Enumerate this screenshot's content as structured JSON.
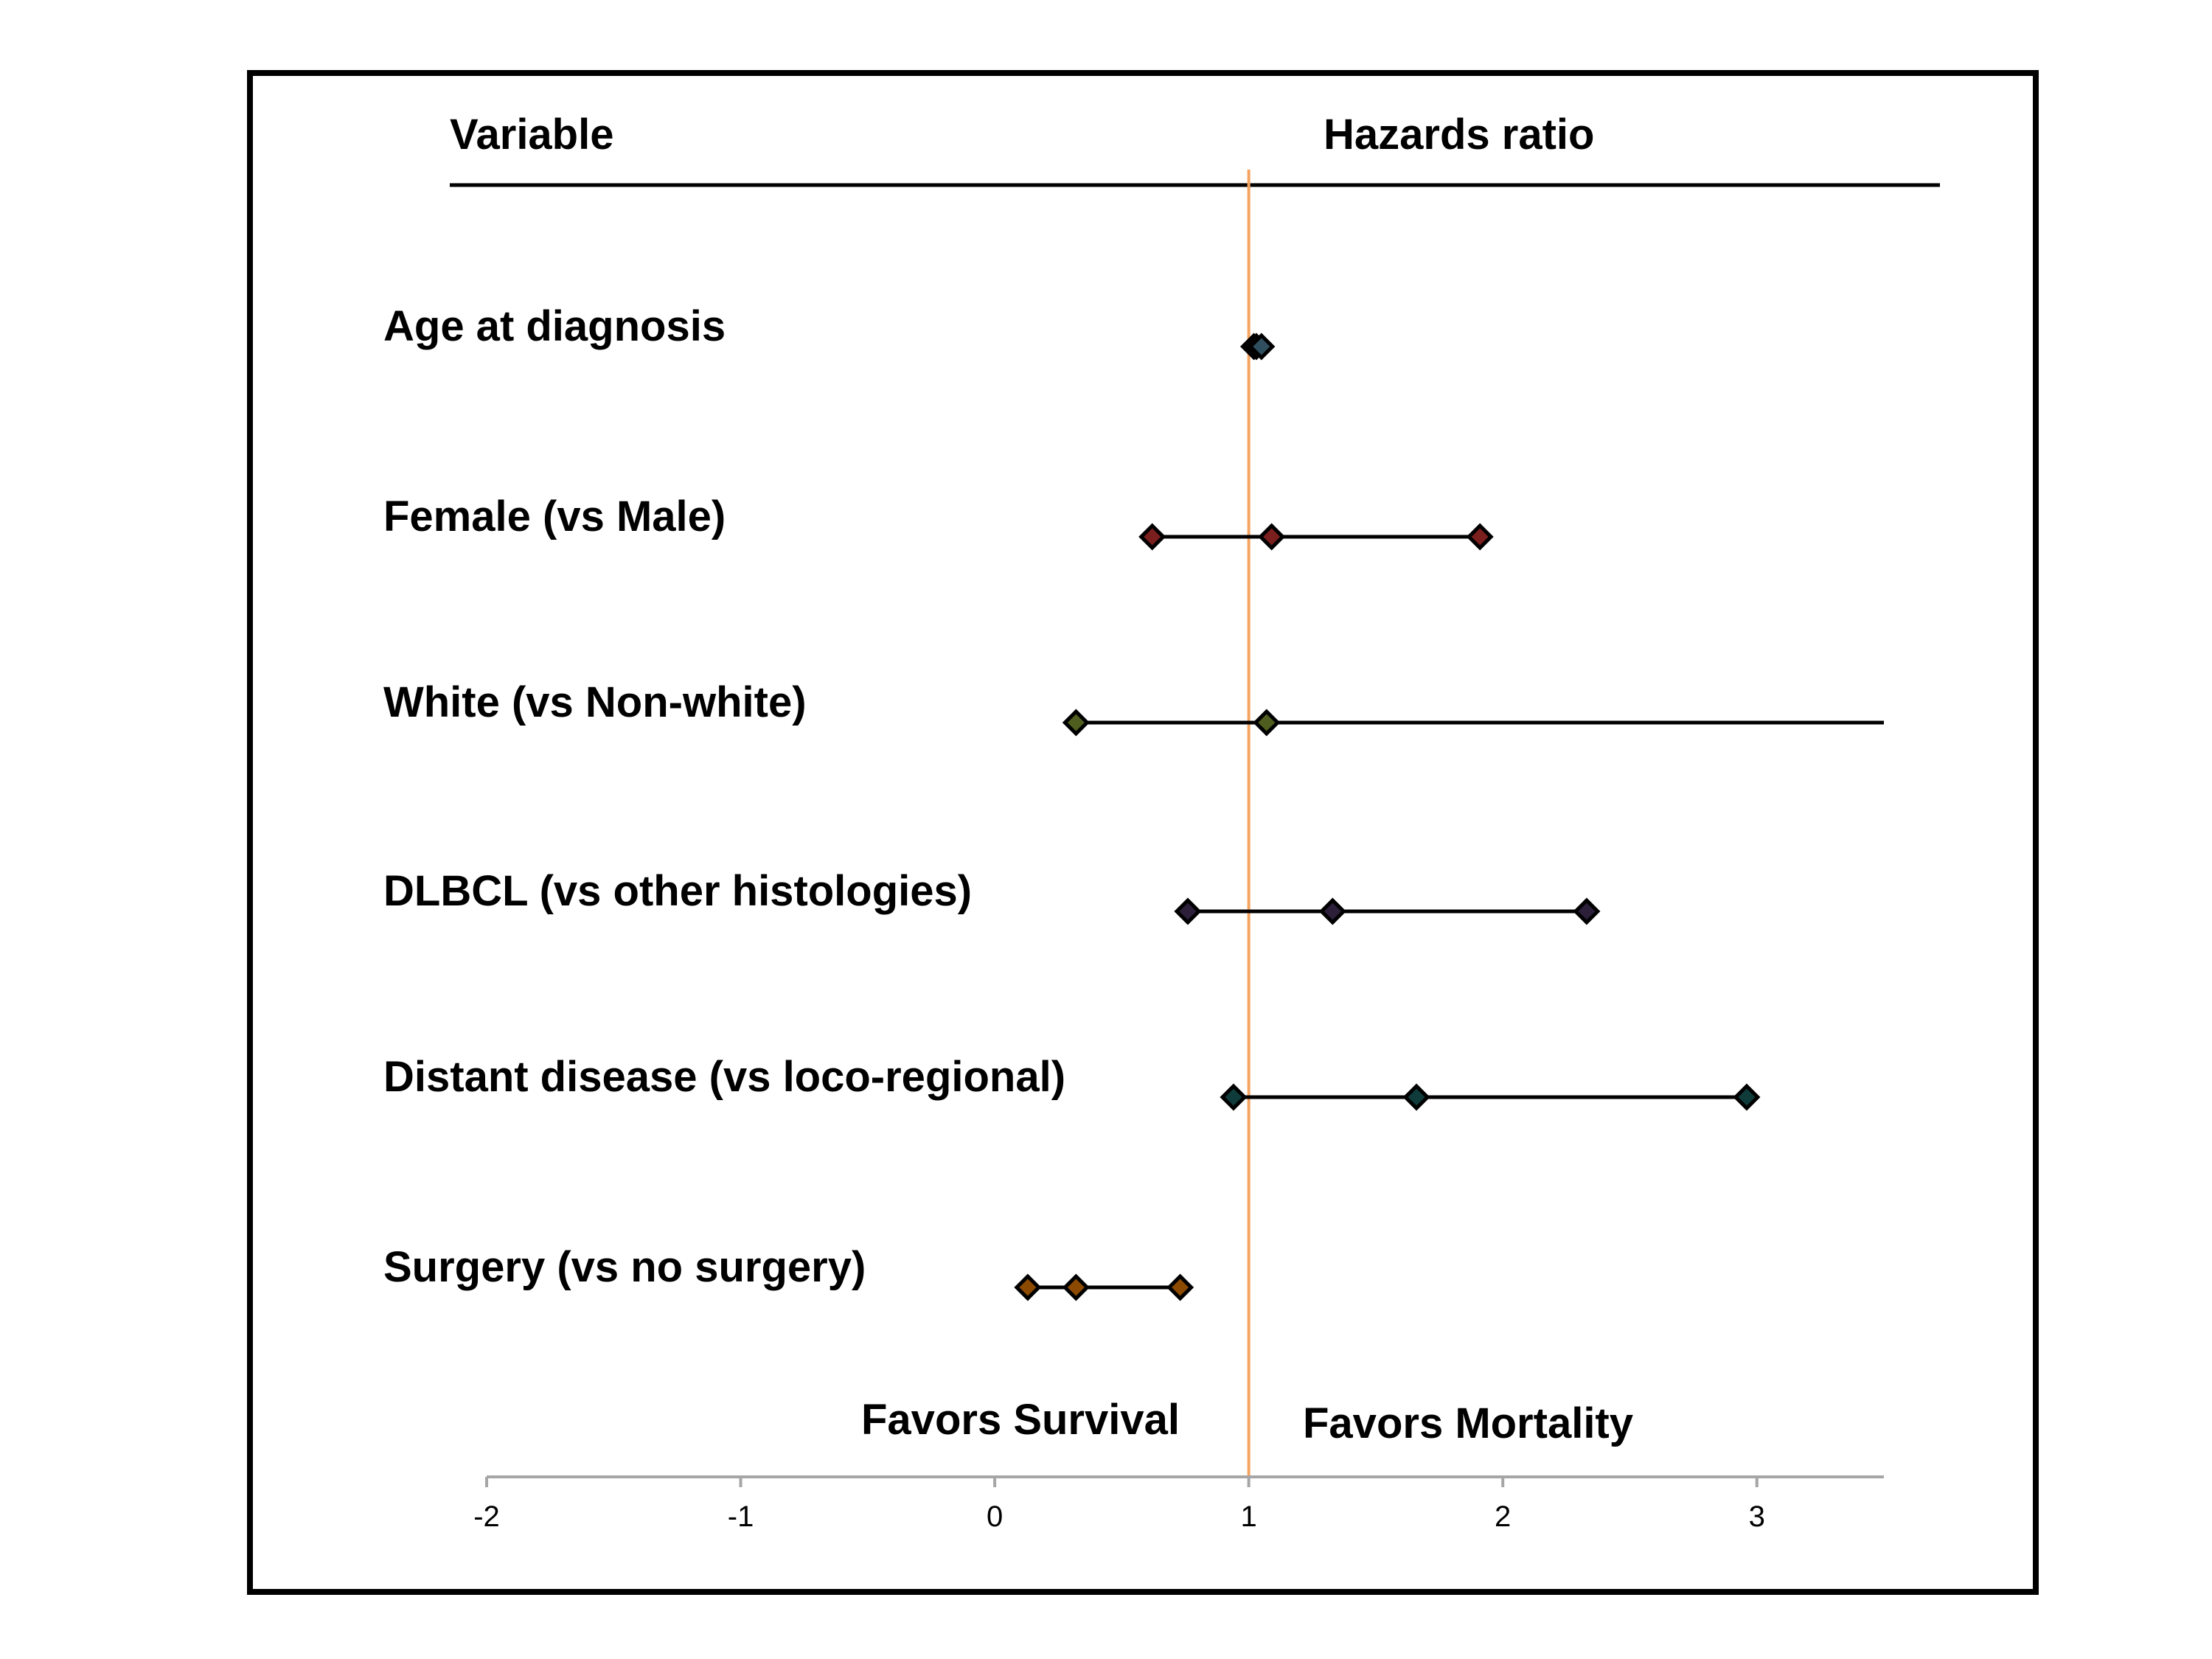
{
  "chart_data": {
    "type": "scatter",
    "subtype": "forest-plot",
    "headers": {
      "variable": "Variable",
      "hazards_ratio": "Hazards ratio"
    },
    "rows": [
      {
        "label": "Age at diagnosis",
        "lower": 1.02,
        "estimate": 1.03,
        "upper": 1.05,
        "color": "#2f4f5f"
      },
      {
        "label": "Female (vs Male)",
        "lower": 0.62,
        "estimate": 1.09,
        "upper": 1.91,
        "color": "#7a1e1e"
      },
      {
        "label": "White (vs Non-white)",
        "lower": 0.32,
        "estimate": 1.07,
        "upper": 3.5,
        "color": "#4f5e1e",
        "upper_truncated": true
      },
      {
        "label": "DLBCL (vs other histologies)",
        "lower": 0.76,
        "estimate": 1.33,
        "upper": 2.33,
        "color": "#2b1f3a"
      },
      {
        "label": "Distant disease (vs loco-regional)",
        "lower": 0.94,
        "estimate": 1.66,
        "upper": 2.96,
        "color": "#0f3b3b"
      },
      {
        "label": "Surgery (vs no surgery)",
        "lower": 0.13,
        "estimate": 0.32,
        "upper": 0.73,
        "color": "#8b4a00"
      }
    ],
    "reference_line": {
      "x": 1,
      "color": "#f4a460"
    },
    "annotations": {
      "left": "Favors Survival",
      "right": "Favors Mortality"
    },
    "xlim": [
      -2,
      3.5
    ],
    "xticks": [
      "-2",
      "-1",
      "0",
      "1",
      "2",
      "3"
    ],
    "xtick_values": [
      -2,
      -1,
      0,
      1,
      2,
      3
    ],
    "grid": false,
    "legend": "none"
  }
}
